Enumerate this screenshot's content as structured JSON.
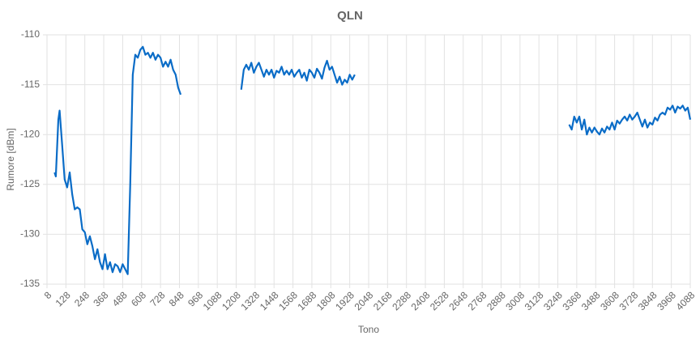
{
  "chart_data": {
    "type": "line",
    "title": "QLN",
    "x_label": "Tono",
    "y_label": "Rumore [dBm]",
    "color": "#0a6cc7",
    "grid": true,
    "xlim": [
      8,
      4088
    ],
    "ylim": [
      -135,
      -110
    ],
    "yticks": [
      -135,
      -130,
      -125,
      -120,
      -115,
      -110
    ],
    "xticks": [
      8,
      128,
      248,
      368,
      488,
      608,
      728,
      848,
      968,
      1088,
      1208,
      1328,
      1448,
      1568,
      1688,
      1808,
      1928,
      2048,
      2168,
      2288,
      2408,
      2528,
      2648,
      2768,
      2888,
      3008,
      3128,
      3248,
      3368,
      3488,
      3608,
      3728,
      3848,
      3968,
      4088
    ],
    "x": [
      56,
      64,
      80,
      88,
      104,
      120,
      136,
      152,
      168,
      184,
      200,
      216,
      232,
      248,
      264,
      280,
      296,
      312,
      328,
      344,
      360,
      376,
      392,
      408,
      424,
      440,
      456,
      472,
      488,
      504,
      520,
      536,
      552,
      568,
      584,
      600,
      616,
      632,
      648,
      664,
      680,
      696,
      712,
      728,
      744,
      760,
      776,
      792,
      808,
      824,
      840,
      856,
      1000,
      1240,
      1256,
      1272,
      1288,
      1304,
      1320,
      1336,
      1352,
      1368,
      1384,
      1400,
      1416,
      1432,
      1448,
      1464,
      1480,
      1496,
      1512,
      1528,
      1544,
      1560,
      1576,
      1592,
      1608,
      1624,
      1640,
      1656,
      1672,
      1688,
      1704,
      1720,
      1736,
      1752,
      1768,
      1784,
      1800,
      1816,
      1832,
      1848,
      1864,
      1880,
      1896,
      1912,
      1928,
      1944,
      1960,
      2600,
      3320,
      3336,
      3352,
      3368,
      3384,
      3400,
      3416,
      3432,
      3448,
      3464,
      3480,
      3496,
      3512,
      3528,
      3544,
      3560,
      3576,
      3592,
      3608,
      3624,
      3640,
      3656,
      3672,
      3688,
      3704,
      3720,
      3736,
      3752,
      3768,
      3784,
      3800,
      3816,
      3832,
      3848,
      3864,
      3880,
      3896,
      3912,
      3928,
      3944,
      3960,
      3976,
      3992,
      4008,
      4024,
      4040,
      4056,
      4072,
      4088
    ],
    "values": [
      -123.8,
      -124.2,
      -118.5,
      -117.6,
      -121,
      -124.5,
      -125.3,
      -123.8,
      -126,
      -127.5,
      -127.3,
      -127.5,
      -129.5,
      -129.8,
      -131,
      -130.2,
      -131.2,
      -132.5,
      -131.5,
      -132.8,
      -133.5,
      -132,
      -133.5,
      -132.8,
      -133.8,
      -133,
      -133.2,
      -133.8,
      -133,
      -133.5,
      -134,
      -125,
      -114,
      -112,
      -112.3,
      -111.5,
      -111.2,
      -112,
      -111.8,
      -112.3,
      -111.8,
      -112.5,
      -112,
      -112.3,
      -113.2,
      -112.7,
      -113.2,
      -112.5,
      -113.5,
      -114,
      -115.3,
      -116,
      null,
      -115.5,
      -113.5,
      -113,
      -113.5,
      -112.8,
      -113.8,
      -113.2,
      -112.8,
      -113.5,
      -114.2,
      -113.5,
      -114,
      -113.5,
      -114.3,
      -113.6,
      -113.8,
      -113.2,
      -114,
      -113.6,
      -114,
      -113.5,
      -114.2,
      -113.8,
      -113.5,
      -114.3,
      -113.8,
      -114.6,
      -113.5,
      -113.8,
      -114.3,
      -113.4,
      -113.8,
      -114.4,
      -113.3,
      -112.6,
      -113.5,
      -113.2,
      -114,
      -114.8,
      -114.2,
      -115,
      -114.5,
      -114.8,
      -114,
      -114.5,
      -114,
      null,
      -119,
      -119.5,
      -118.2,
      -118.8,
      -118.2,
      -119.5,
      -118.5,
      -120,
      -119.3,
      -119.8,
      -119.3,
      -119.7,
      -120,
      -119.4,
      -119.8,
      -119.2,
      -119.5,
      -118.8,
      -119.5,
      -118.6,
      -118.9,
      -118.5,
      -118.2,
      -118.6,
      -118,
      -118.5,
      -118.2,
      -117.8,
      -118.5,
      -119.2,
      -118.5,
      -119.3,
      -118.8,
      -119,
      -118.3,
      -118.6,
      -118,
      -117.8,
      -118,
      -117.3,
      -117.5,
      -117.1,
      -117.8,
      -117.2,
      -117.4,
      -117.1,
      -117.6,
      -117.3,
      -118.5
    ]
  }
}
